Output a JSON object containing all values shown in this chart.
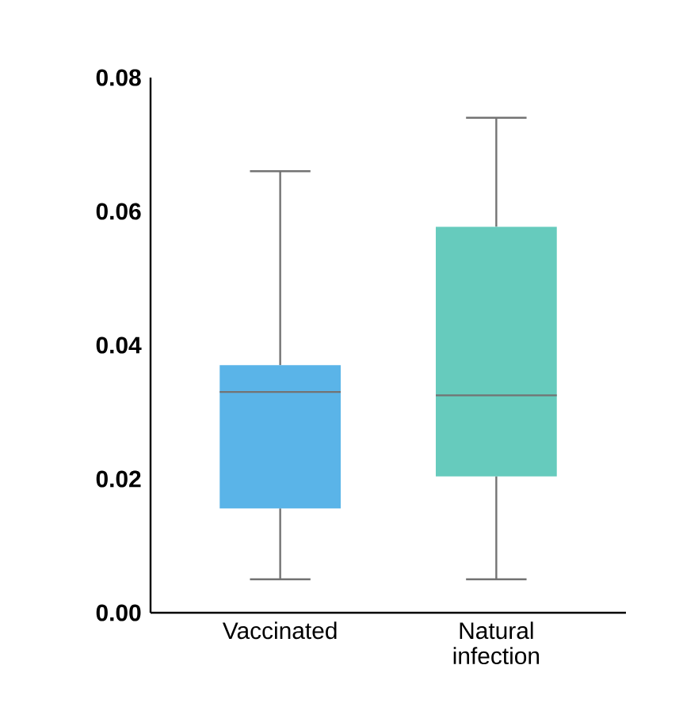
{
  "chart_data": {
    "type": "box",
    "categories": [
      "Vaccinated",
      "Natural infection"
    ],
    "boxes": [
      {
        "low": 0.005,
        "q1": 0.0156,
        "median": 0.033,
        "q3": 0.037,
        "high": 0.066
      },
      {
        "low": 0.005,
        "q1": 0.0204,
        "median": 0.0325,
        "q3": 0.0577,
        "high": 0.074
      }
    ],
    "colors": [
      "#5ab4e8",
      "#66cbbd"
    ],
    "ylim": [
      0,
      0.08
    ],
    "yticks": [
      {
        "value": 0,
        "label": "0.00"
      },
      {
        "value": 0.02,
        "label": "0.02"
      },
      {
        "value": 0.04,
        "label": "0.04"
      },
      {
        "value": 0.06,
        "label": "0.06"
      },
      {
        "value": 0.08,
        "label": "0.08"
      }
    ],
    "grid": false
  }
}
